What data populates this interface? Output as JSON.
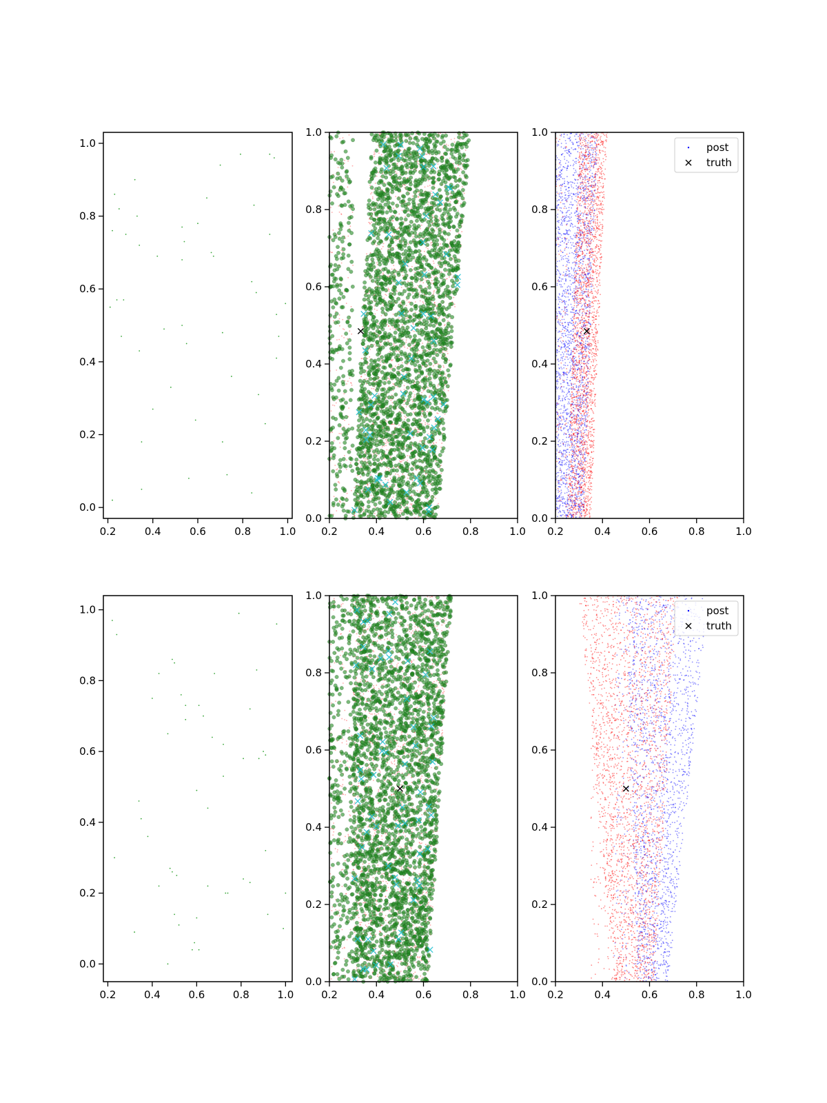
{
  "chart_data": [
    {
      "type": "scatter",
      "panel": "top-left",
      "xlim": [
        0.18,
        1.02
      ],
      "ylim": [
        -0.03,
        1.03
      ],
      "xticks": [
        "0.2",
        "0.4",
        "0.6",
        "0.8",
        "1.0"
      ],
      "yticks": [
        "0.0",
        "0.2",
        "0.4",
        "0.6",
        "0.8",
        "1.0"
      ],
      "grid": false,
      "series": [
        {
          "color": "#2ca02c",
          "marker": "dot",
          "points": [
            [
              0.22,
              0.76
            ],
            [
              0.23,
              0.86
            ],
            [
              0.25,
              0.82
            ],
            [
              0.28,
              0.75
            ],
            [
              0.32,
              0.9
            ],
            [
              0.33,
              0.8
            ],
            [
              0.34,
              0.72
            ],
            [
              0.21,
              0.55
            ],
            [
              0.24,
              0.57
            ],
            [
              0.27,
              0.57
            ],
            [
              0.26,
              0.47
            ],
            [
              0.34,
              0.43
            ],
            [
              0.42,
              0.69
            ],
            [
              0.45,
              0.49
            ],
            [
              0.48,
              0.33
            ],
            [
              0.4,
              0.27
            ],
            [
              0.35,
              0.18
            ],
            [
              0.35,
              0.05
            ],
            [
              0.22,
              0.02
            ],
            [
              0.53,
              0.77
            ],
            [
              0.54,
              0.73
            ],
            [
              0.53,
              0.68
            ],
            [
              0.55,
              0.45
            ],
            [
              0.53,
              0.5
            ],
            [
              0.6,
              0.78
            ],
            [
              0.64,
              0.85
            ],
            [
              0.66,
              0.7
            ],
            [
              0.67,
              0.69
            ],
            [
              0.7,
              0.94
            ],
            [
              0.79,
              0.97
            ],
            [
              0.71,
              0.48
            ],
            [
              0.75,
              0.36
            ],
            [
              0.59,
              0.24
            ],
            [
              0.56,
              0.08
            ],
            [
              0.71,
              0.18
            ],
            [
              0.73,
              0.09
            ],
            [
              0.85,
              0.83
            ],
            [
              0.84,
              0.62
            ],
            [
              0.86,
              0.59
            ],
            [
              0.87,
              0.31
            ],
            [
              0.9,
              0.23
            ],
            [
              0.84,
              0.04
            ],
            [
              0.92,
              0.97
            ],
            [
              0.94,
              0.96
            ],
            [
              0.92,
              0.75
            ],
            [
              0.95,
              0.53
            ],
            [
              0.99,
              0.56
            ],
            [
              0.96,
              0.47
            ],
            [
              0.95,
              0.41
            ]
          ]
        }
      ]
    },
    {
      "type": "scatter",
      "panel": "top-middle",
      "xlim": [
        0.2,
        1.0
      ],
      "ylim": [
        0.0,
        1.0
      ],
      "xticks": [
        "0.2",
        "0.4",
        "0.6",
        "0.8",
        "1.0"
      ],
      "yticks": [
        "0.0",
        "0.2",
        "0.4",
        "0.6",
        "0.8",
        "1.0"
      ],
      "grid": false,
      "band": {
        "bottom": [
          0.3,
          0.66
        ],
        "top": [
          0.38,
          0.8
        ]
      },
      "series": [
        {
          "color": "#ff3b3b",
          "marker": "small-dot",
          "count": 2000
        },
        {
          "color": "#228b22",
          "marker": "circle",
          "count": 3000
        },
        {
          "color": "#17becf",
          "marker": "x",
          "count": 60
        }
      ],
      "truth": [
        0.333,
        0.485
      ]
    },
    {
      "type": "scatter",
      "panel": "top-right",
      "xlim": [
        0.2,
        1.0
      ],
      "ylim": [
        0.0,
        1.0
      ],
      "xticks": [
        "0.2",
        "0.4",
        "0.6",
        "0.8",
        "1.0"
      ],
      "yticks": [
        "0.0",
        "0.2",
        "0.4",
        "0.6",
        "0.8",
        "1.0"
      ],
      "grid": false,
      "legend": {
        "placement": "top-right",
        "entries": [
          "post",
          "truth"
        ]
      },
      "series": [
        {
          "name": "post",
          "color": "#0000ff",
          "marker": "small-dot",
          "band": {
            "bottom": [
              0.2,
              0.32
            ],
            "top": [
              0.2,
              0.38
            ]
          },
          "count": 2500
        },
        {
          "color": "#ff0000",
          "marker": "small-dot",
          "band": {
            "bottom": [
              0.25,
              0.35
            ],
            "top": [
              0.3,
              0.42
            ]
          },
          "count": 2500
        }
      ],
      "truth": [
        0.333,
        0.485
      ]
    },
    {
      "type": "scatter",
      "panel": "bottom-left",
      "xlim": [
        0.18,
        1.03
      ],
      "ylim": [
        -0.05,
        1.04
      ],
      "xticks": [
        "0.2",
        "0.4",
        "0.6",
        "0.8",
        "1.0"
      ],
      "yticks": [
        "0.0",
        "0.2",
        "0.4",
        "0.6",
        "0.8",
        "1.0"
      ],
      "grid": false,
      "series": [
        {
          "color": "#2ca02c",
          "marker": "dot",
          "points": [
            [
              0.22,
              0.97
            ],
            [
              0.24,
              0.93
            ],
            [
              0.23,
              0.3
            ],
            [
              0.32,
              0.09
            ],
            [
              0.34,
              0.46
            ],
            [
              0.35,
              0.41
            ],
            [
              0.38,
              0.36
            ],
            [
              0.4,
              0.75
            ],
            [
              0.43,
              0.82
            ],
            [
              0.43,
              0.22
            ],
            [
              0.47,
              0.65
            ],
            [
              0.48,
              0.27
            ],
            [
              0.49,
              0.26
            ],
            [
              0.49,
              0.86
            ],
            [
              0.5,
              0.85
            ],
            [
              0.5,
              0.14
            ],
            [
              0.51,
              0.25
            ],
            [
              0.52,
              0.11
            ],
            [
              0.53,
              0.76
            ],
            [
              0.55,
              0.73
            ],
            [
              0.55,
              0.69
            ],
            [
              0.58,
              0.04
            ],
            [
              0.59,
              0.06
            ],
            [
              0.6,
              0.13
            ],
            [
              0.61,
              0.04
            ],
            [
              0.6,
              0.49
            ],
            [
              0.61,
              0.73
            ],
            [
              0.63,
              0.7
            ],
            [
              0.65,
              0.44
            ],
            [
              0.65,
              0.22
            ],
            [
              0.67,
              0.64
            ],
            [
              0.68,
              0.82
            ],
            [
              0.72,
              0.62
            ],
            [
              0.72,
              0.53
            ],
            [
              0.73,
              0.2
            ],
            [
              0.74,
              0.2
            ],
            [
              0.79,
              0.99
            ],
            [
              0.81,
              0.58
            ],
            [
              0.81,
              0.24
            ],
            [
              0.84,
              0.72
            ],
            [
              0.84,
              0.23
            ],
            [
              0.87,
              0.83
            ],
            [
              0.88,
              0.58
            ],
            [
              0.9,
              0.6
            ],
            [
              0.91,
              0.59
            ],
            [
              0.91,
              0.32
            ],
            [
              0.92,
              0.14
            ],
            [
              0.96,
              0.96
            ],
            [
              0.99,
              0.1
            ],
            [
              1.0,
              0.2
            ],
            [
              0.47,
              0.0
            ]
          ]
        }
      ]
    },
    {
      "type": "scatter",
      "panel": "bottom-middle",
      "xlim": [
        0.2,
        1.0
      ],
      "ylim": [
        0.0,
        1.0
      ],
      "xticks": [
        "0.2",
        "0.4",
        "0.6",
        "0.8",
        "1.0"
      ],
      "yticks": [
        "0.0",
        "0.2",
        "0.4",
        "0.6",
        "0.8",
        "1.0"
      ],
      "grid": false,
      "band": {
        "bottom": [
          0.3,
          0.62
        ],
        "top": [
          0.3,
          0.72
        ]
      },
      "series": [
        {
          "color": "#ff3b3b",
          "marker": "small-dot",
          "count": 2000
        },
        {
          "color": "#228b22",
          "marker": "circle",
          "count": 3000
        },
        {
          "color": "#17becf",
          "marker": "x",
          "count": 60
        }
      ],
      "truth": [
        0.5,
        0.5
      ]
    },
    {
      "type": "scatter",
      "panel": "bottom-right",
      "xlim": [
        0.2,
        1.0
      ],
      "ylim": [
        0.0,
        1.0
      ],
      "xticks": [
        "0.2",
        "0.4",
        "0.6",
        "0.8",
        "1.0"
      ],
      "yticks": [
        "0.0",
        "0.2",
        "0.4",
        "0.6",
        "0.8",
        "1.0"
      ],
      "grid": false,
      "legend": {
        "placement": "top-right",
        "entries": [
          "post",
          "truth"
        ]
      },
      "series": [
        {
          "name": "post",
          "color": "#0000ff",
          "marker": "small-dot",
          "band": {
            "bottom": [
              0.55,
              0.68
            ],
            "top": [
              0.5,
              0.85
            ]
          },
          "count": 2000
        },
        {
          "color": "#ff0000",
          "marker": "small-dot",
          "band": {
            "bottom": [
              0.45,
              0.62
            ],
            "top": [
              0.3,
              0.72
            ]
          },
          "count": 2500
        }
      ],
      "truth": [
        0.5,
        0.5
      ]
    }
  ]
}
